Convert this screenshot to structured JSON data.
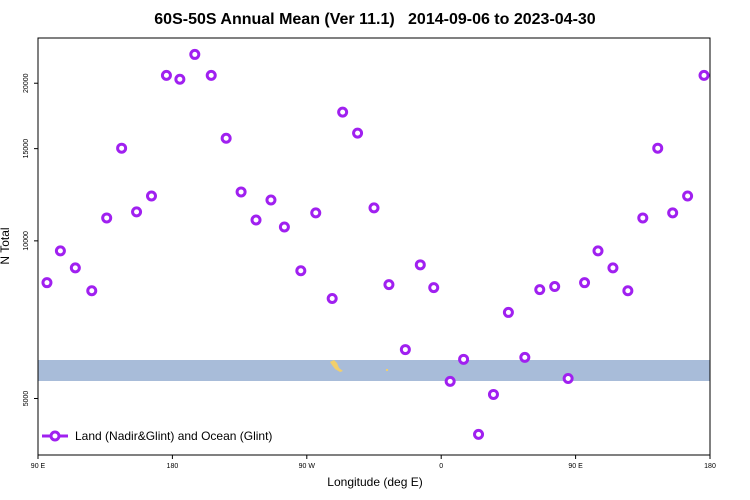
{
  "chart_data": {
    "type": "scatter",
    "title": "60S-50S Annual Mean (Ver 11.1)   2014-09-06 to 2023-04-30",
    "x_label": "Longitude (deg E)",
    "y_label": "N Total",
    "y_log": true,
    "legend_position": "lower left",
    "xlim": [
      90,
      540
    ],
    "xticks": [
      {
        "value": 90,
        "label": "90 E"
      },
      {
        "value": 180,
        "label": "180"
      },
      {
        "value": 270,
        "label": "90 W"
      },
      {
        "value": 360,
        "label": "0"
      },
      {
        "value": 450,
        "label": "90 E"
      },
      {
        "value": 540,
        "label": "180"
      }
    ],
    "ylim": [
      3900,
      24400
    ],
    "yticks": [
      5000,
      10000,
      15000,
      20000
    ],
    "series": [
      {
        "name": "Land (Nadir&Glint) and Ocean (Glint)",
        "color": "#a020f0",
        "x": [
          96,
          105,
          115,
          126,
          136,
          146,
          156,
          166,
          176,
          185,
          195,
          206,
          216,
          226,
          236,
          246,
          255,
          266,
          276,
          287,
          294,
          304,
          315,
          325,
          336,
          346,
          355,
          366,
          375,
          385,
          395,
          405,
          416,
          426,
          436,
          445,
          456,
          465,
          475,
          485,
          495,
          505,
          515,
          525,
          536
        ],
        "values": [
          8320,
          9570,
          8880,
          8030,
          11060,
          15030,
          11360,
          12180,
          20700,
          20350,
          22700,
          20700,
          15700,
          12400,
          10960,
          11970,
          10630,
          8770,
          11310,
          7760,
          17610,
          16060,
          11560,
          8250,
          6200,
          9000,
          8140,
          5390,
          5940,
          4270,
          5090,
          7300,
          5990,
          8070,
          8180,
          5460,
          8320,
          9570,
          8880,
          8030,
          11060,
          15030,
          11310,
          12180,
          20700
        ]
      }
    ]
  }
}
